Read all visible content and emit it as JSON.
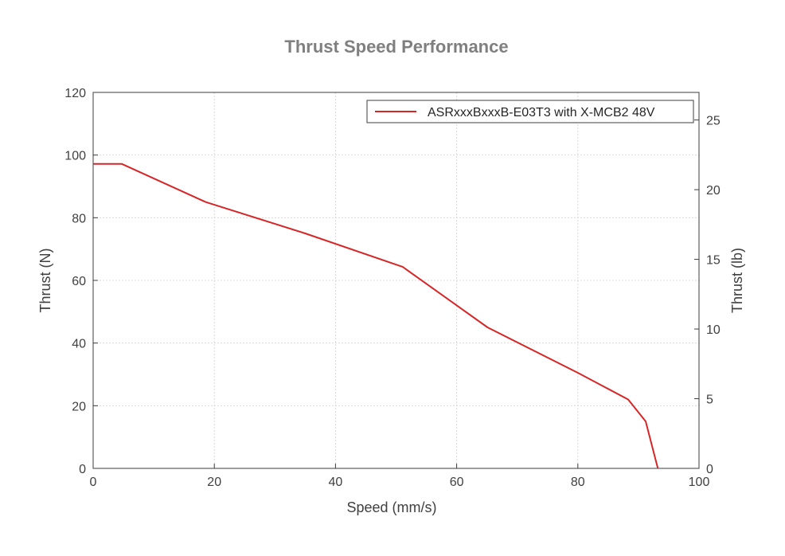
{
  "chart_data": {
    "type": "line",
    "title": "Thrust Speed Performance",
    "xlabel": "Speed (mm/s)",
    "ylabel": "Thrust (N)",
    "ylabel_right": "Thrust (lb)",
    "xlim": [
      0,
      100
    ],
    "ylim": [
      0,
      120
    ],
    "ylim_right": [
      0,
      26.98
    ],
    "x_ticks": [
      0,
      20,
      40,
      60,
      80,
      100
    ],
    "y_ticks": [
      0,
      20,
      40,
      60,
      80,
      100,
      120
    ],
    "y_right_ticks": [
      0,
      5,
      10,
      15,
      20,
      25
    ],
    "grid": true,
    "legend_position": "top-right",
    "series": [
      {
        "name": "ASRxxxBxxxB-E03T3 with X-MCB2 48V",
        "color": "#d62728",
        "x": [
          0,
          4.7,
          18.6,
          35.0,
          51.1,
          65.1,
          80.0,
          88.3,
          91.2,
          93.2
        ],
        "y": [
          97.2,
          97.2,
          85.0,
          75.0,
          64.3,
          45.0,
          30.5,
          22.0,
          15.0,
          0
        ]
      }
    ]
  }
}
